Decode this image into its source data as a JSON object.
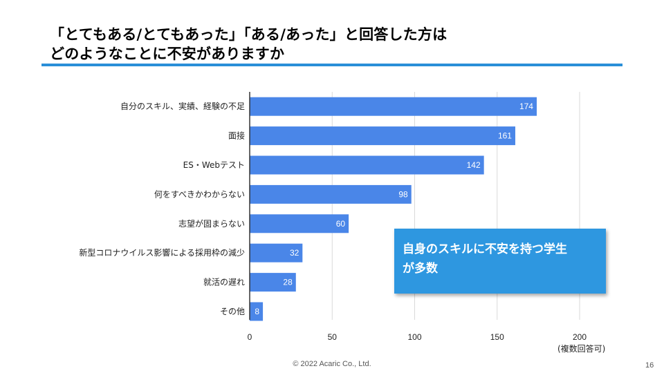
{
  "title": {
    "line1": "「とてもある/とてもあった」「ある/あった」と回答した方は",
    "line2": "どのようなことに不安がありますか"
  },
  "chart_data": {
    "type": "bar",
    "orientation": "horizontal",
    "categories": [
      "自分のスキル、実績、経験の不足",
      "面接",
      "ES・Webテスト",
      "何をすべきかわからない",
      "志望が固まらない",
      "新型コロナウイルス影響による採用枠の減少",
      "就活の遅れ",
      "その他"
    ],
    "values": [
      174,
      161,
      142,
      98,
      60,
      32,
      28,
      8
    ],
    "xlim": [
      0,
      200
    ],
    "ticks": [
      0,
      50,
      100,
      150,
      200
    ],
    "bar_color": "#4a86e8",
    "label_color": "#ffffff",
    "grid": true
  },
  "callout": {
    "line1": "自身のスキルに不安を持つ学生",
    "line2": "が多数"
  },
  "note": "(複数回答可)",
  "footer": {
    "copyright": "© 2022 Acaric Co., Ltd.",
    "page": "16"
  }
}
